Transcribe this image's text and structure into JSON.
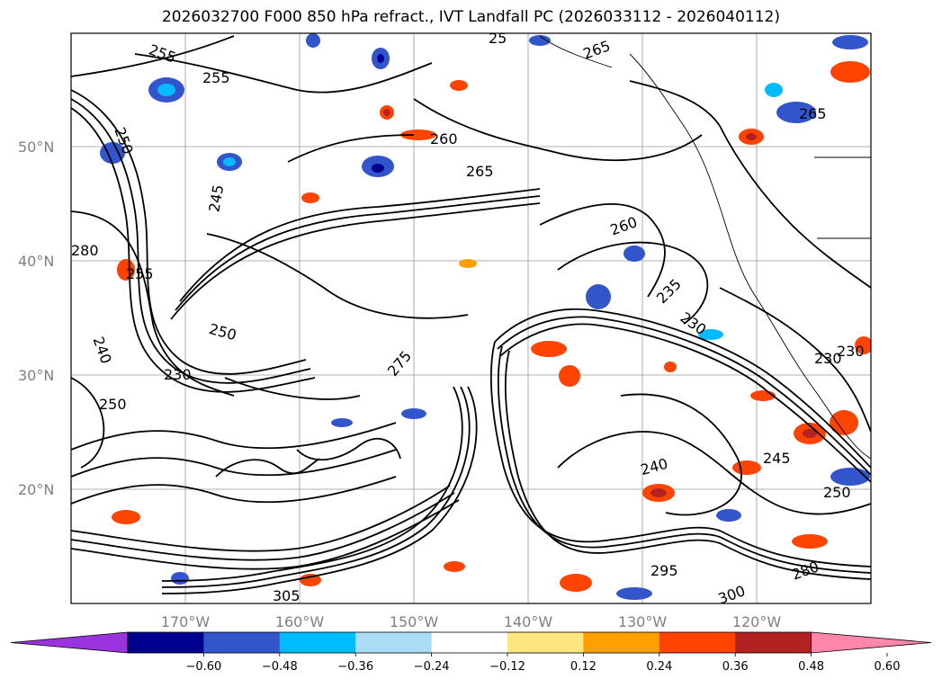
{
  "title": "2026032700 F000 850 hPa refract., IVT Landfall PC (2026033112 - 2026040112)",
  "lat_labels": [
    "50°N",
    "40°N",
    "30°N",
    "20°N"
  ],
  "lon_labels": [
    "170°W",
    "160°W",
    "150°W",
    "140°W",
    "130°W",
    "120°W"
  ],
  "contour_labels": [
    "255",
    "255",
    "265",
    "250",
    "245",
    "255",
    "265",
    "260",
    "235",
    "230",
    "250",
    "230",
    "240",
    "245",
    "250",
    "260",
    "295",
    "300",
    "305",
    "280",
    "230",
    "230",
    "275",
    "240",
    "250",
    "25",
    "280",
    "265"
  ],
  "colorbar": {
    "ticks": [
      "−0.60",
      "−0.48",
      "−0.36",
      "−0.24",
      "−0.12",
      "0.12",
      "0.24",
      "0.36",
      "0.48",
      "0.60"
    ],
    "colors": [
      "#9933dd",
      "#000090",
      "#3355cc",
      "#00bbff",
      "#aaddf5",
      "#ffffff",
      "#ffe680",
      "#ffa000",
      "#ff4400",
      "#b22222",
      "#ff88aa"
    ]
  }
}
